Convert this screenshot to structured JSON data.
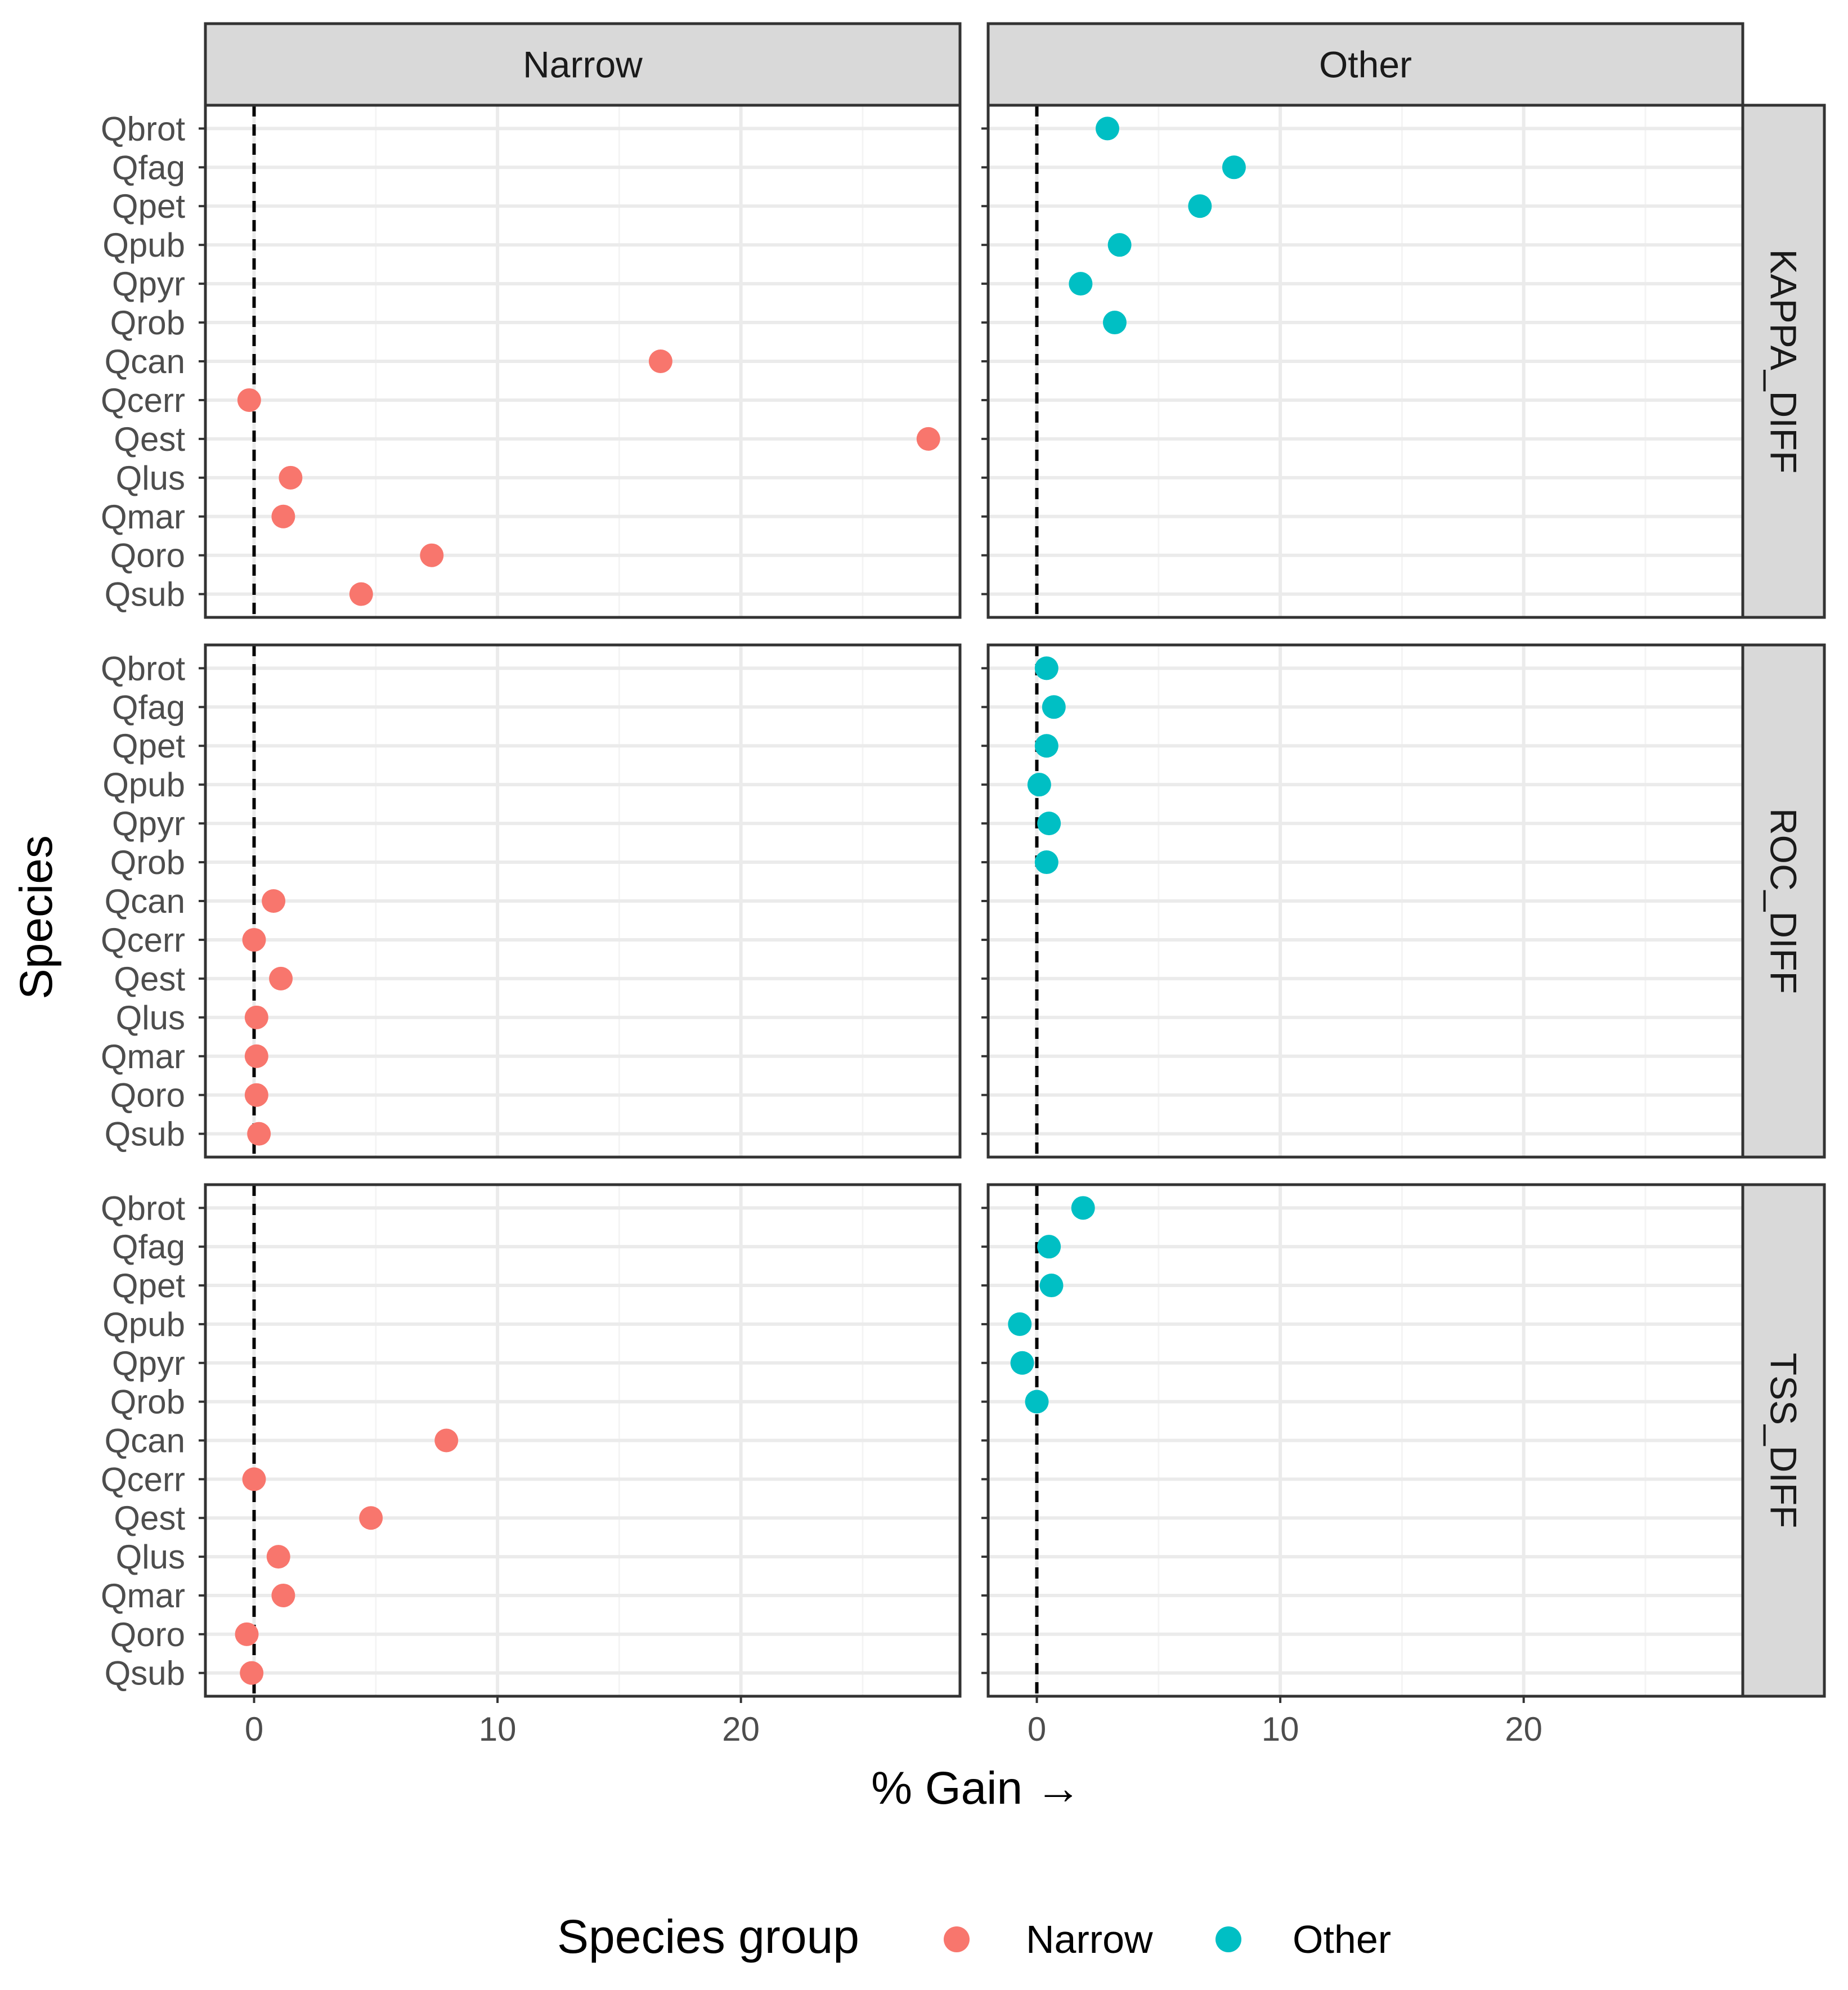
{
  "chart_data": {
    "type": "scatter",
    "facet_columns": [
      "Narrow",
      "Other"
    ],
    "facet_rows": [
      "KAPPA_DIFF",
      "ROC_DIFF",
      "TSS_DIFF"
    ],
    "xlabel": "% Gain →",
    "ylabel": "Species",
    "xlim": [
      -2,
      29
    ],
    "x_ticks": [
      0,
      10,
      20
    ],
    "reference_line": {
      "x": 0,
      "style": "dashed"
    },
    "species_order": [
      "Qbrot",
      "Qfag",
      "Qpet",
      "Qpub",
      "Qpyr",
      "Qrob",
      "Qcan",
      "Qcerr",
      "Qest",
      "Qlus",
      "Qmar",
      "Qoro",
      "Qsub"
    ],
    "legend": {
      "title": "Species group",
      "position": "bottom",
      "items": [
        {
          "label": "Narrow",
          "color": "#F8766D"
        },
        {
          "label": "Other",
          "color": "#00BFC4"
        }
      ]
    },
    "series": [
      {
        "name": "Narrow",
        "color": "#F8766D",
        "species": [
          "Qcan",
          "Qcerr",
          "Qest",
          "Qlus",
          "Qmar",
          "Qoro",
          "Qsub"
        ],
        "values": {
          "KAPPA_DIFF": [
            16.7,
            -0.2,
            27.7,
            1.5,
            1.2,
            7.3,
            4.4
          ],
          "ROC_DIFF": [
            0.8,
            0.0,
            1.1,
            0.1,
            0.1,
            0.1,
            0.2
          ],
          "TSS_DIFF": [
            7.9,
            0.0,
            4.8,
            1.0,
            1.2,
            -0.3,
            -0.1
          ]
        }
      },
      {
        "name": "Other",
        "color": "#00BFC4",
        "species": [
          "Qbrot",
          "Qfag",
          "Qpet",
          "Qpub",
          "Qpyr",
          "Qrob"
        ],
        "values": {
          "KAPPA_DIFF": [
            2.9,
            8.1,
            6.7,
            3.4,
            1.8,
            3.2
          ],
          "ROC_DIFF": [
            0.4,
            0.7,
            0.4,
            0.1,
            0.5,
            0.4
          ],
          "TSS_DIFF": [
            1.9,
            0.5,
            0.6,
            -0.7,
            -0.6,
            0.0
          ]
        }
      }
    ]
  }
}
